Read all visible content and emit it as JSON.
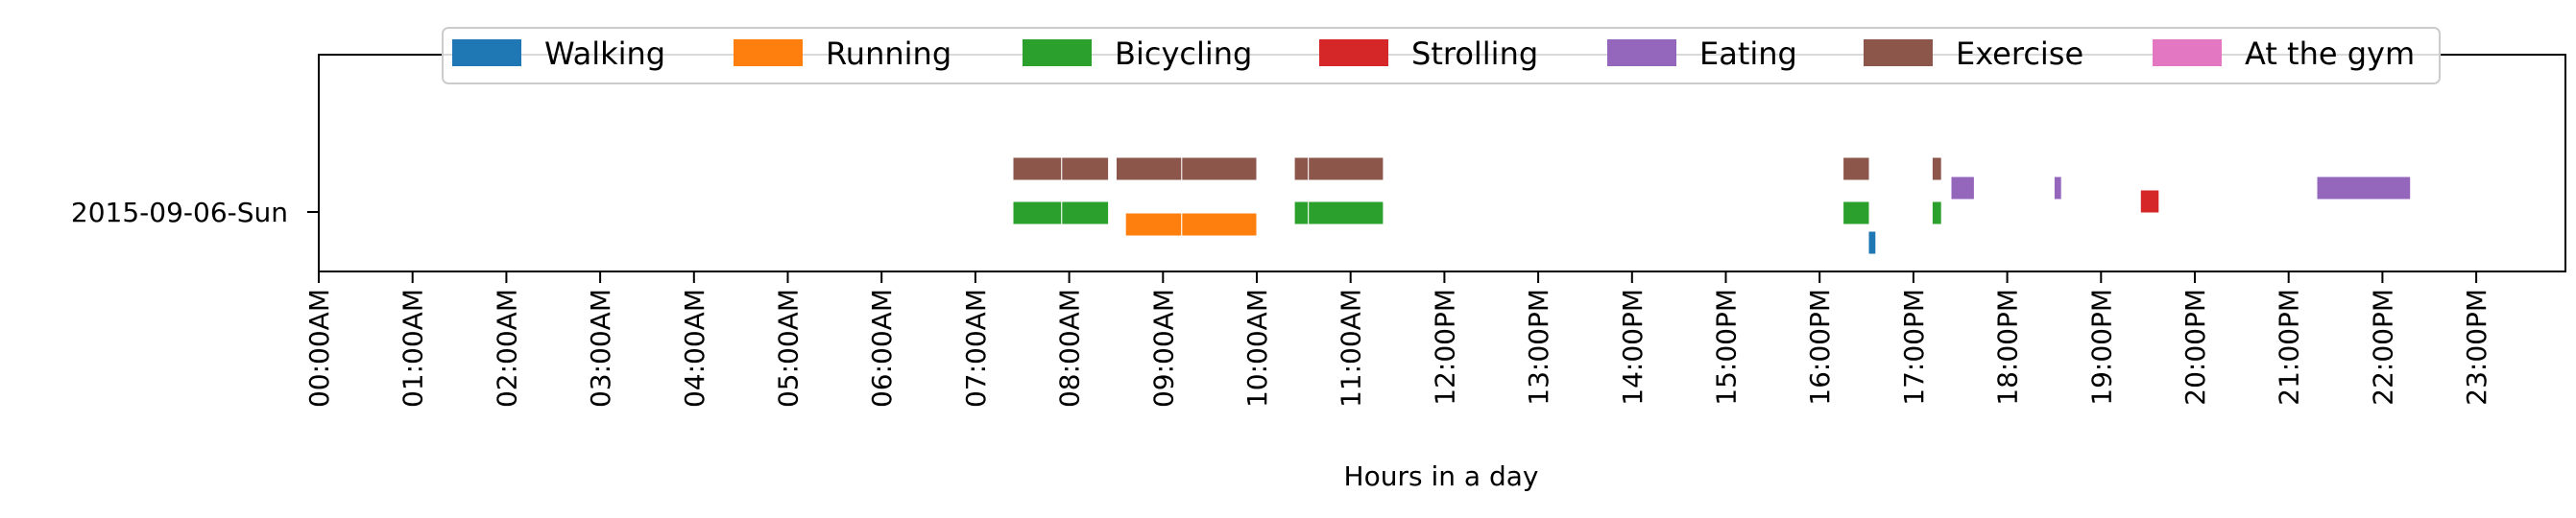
{
  "chart_data": {
    "type": "timeline",
    "title": "",
    "xlabel": "Hours in a day",
    "ylabel": "",
    "xlim": [
      0,
      24
    ],
    "grid": false,
    "legend_position": "top-center",
    "y_categories": [
      "2015-09-06-Sun"
    ],
    "x_ticks": [
      0,
      1,
      2,
      3,
      4,
      5,
      6,
      7,
      8,
      9,
      10,
      11,
      12,
      13,
      14,
      15,
      16,
      17,
      18,
      19,
      20,
      21,
      22,
      23
    ],
    "x_tick_labels": [
      "00:00AM",
      "01:00AM",
      "02:00AM",
      "03:00AM",
      "04:00AM",
      "05:00AM",
      "06:00AM",
      "07:00AM",
      "08:00AM",
      "09:00AM",
      "10:00AM",
      "11:00AM",
      "12:00PM",
      "13:00PM",
      "14:00PM",
      "15:00PM",
      "16:00PM",
      "17:00PM",
      "18:00PM",
      "19:00PM",
      "20:00PM",
      "21:00PM",
      "22:00PM",
      "23:00PM"
    ],
    "series": [
      {
        "name": "Walking",
        "color": "#1f77b4",
        "lane": 0,
        "intervals": [
          [
            16.52,
            16.6
          ]
        ]
      },
      {
        "name": "Running",
        "color": "#ff7f0e",
        "lane": 1,
        "intervals": [
          [
            8.6,
            9.2
          ],
          [
            9.2,
            10.0
          ]
        ]
      },
      {
        "name": "Bicycling",
        "color": "#2ca02c",
        "lane": 2,
        "intervals": [
          [
            7.4,
            7.92
          ],
          [
            7.92,
            8.42
          ],
          [
            10.4,
            10.55
          ],
          [
            10.55,
            11.35
          ],
          [
            16.25,
            16.53
          ],
          [
            17.2,
            17.3
          ]
        ]
      },
      {
        "name": "Strolling",
        "color": "#d62728",
        "lane": 3,
        "intervals": [
          [
            19.42,
            19.62
          ]
        ]
      },
      {
        "name": "Eating",
        "color": "#9467bd",
        "lane": 4,
        "intervals": [
          [
            17.4,
            17.65
          ],
          [
            18.5,
            18.58
          ],
          [
            21.3,
            22.3
          ]
        ]
      },
      {
        "name": "Exercise",
        "color": "#8c564b",
        "lane": 5,
        "intervals": [
          [
            7.4,
            7.92
          ],
          [
            7.92,
            8.42
          ],
          [
            8.5,
            9.2
          ],
          [
            9.2,
            10.0
          ],
          [
            10.4,
            10.55
          ],
          [
            10.55,
            11.35
          ],
          [
            16.25,
            16.53
          ],
          [
            17.2,
            17.3
          ]
        ]
      },
      {
        "name": "At the gym",
        "color": "#e377c2",
        "lane": 6,
        "intervals": []
      }
    ]
  }
}
